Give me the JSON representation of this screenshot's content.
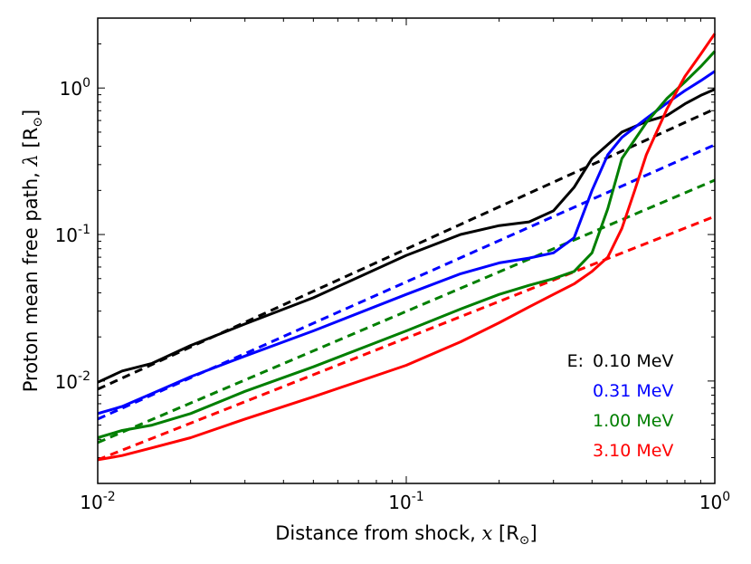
{
  "chart_data": {
    "type": "line",
    "xscale": "log",
    "yscale": "log",
    "xlim": [
      0.01,
      1.0
    ],
    "ylim": [
      0.002,
      3.0
    ],
    "xlabel": "Distance from shock,",
    "xlabel_math": "x",
    "xlabel_unit": "[R",
    "xlabel_unit_sub": "⊙",
    "xlabel_unit_close": "]",
    "ylabel": "Proton mean free path,",
    "ylabel_math": "λ",
    "ylabel_unit": "[R",
    "ylabel_unit_sub": "⊙",
    "ylabel_unit_close": "]",
    "x_ticks": [
      {
        "value": 0.01,
        "base": "10",
        "exp": "-2"
      },
      {
        "value": 0.1,
        "base": "10",
        "exp": "-1"
      },
      {
        "value": 1.0,
        "base": "10",
        "exp": "0"
      }
    ],
    "y_ticks": [
      {
        "value": 0.01,
        "base": "10",
        "exp": "-2"
      },
      {
        "value": 0.1,
        "base": "10",
        "exp": "-1"
      },
      {
        "value": 1.0,
        "base": "10",
        "exp": "0"
      }
    ],
    "legend_title": "E:",
    "legend_position": "lower-right",
    "series": [
      {
        "name": "0.10 MeV",
        "color": "#000000",
        "solid": {
          "x": [
            0.01,
            0.012,
            0.015,
            0.02,
            0.03,
            0.05,
            0.1,
            0.15,
            0.2,
            0.25,
            0.3,
            0.35,
            0.4,
            0.5,
            0.6,
            0.7,
            0.8,
            0.9,
            1.0
          ],
          "y": [
            0.0098,
            0.0117,
            0.0132,
            0.0175,
            0.0245,
            0.037,
            0.072,
            0.1,
            0.115,
            0.122,
            0.145,
            0.21,
            0.33,
            0.5,
            0.59,
            0.65,
            0.78,
            0.89,
            0.98
          ]
        },
        "fit": {
          "x": [
            0.01,
            1.0
          ],
          "y": [
            0.0088,
            0.72
          ]
        }
      },
      {
        "name": "0.31 MeV",
        "color": "#0000ff",
        "solid": {
          "x": [
            0.01,
            0.012,
            0.015,
            0.02,
            0.03,
            0.05,
            0.1,
            0.15,
            0.2,
            0.25,
            0.3,
            0.35,
            0.4,
            0.45,
            0.5,
            0.6,
            0.7,
            0.8,
            0.9,
            1.0
          ],
          "y": [
            0.006,
            0.0067,
            0.0082,
            0.0107,
            0.0148,
            0.022,
            0.039,
            0.054,
            0.064,
            0.069,
            0.075,
            0.095,
            0.2,
            0.35,
            0.46,
            0.62,
            0.79,
            0.96,
            1.12,
            1.3
          ]
        },
        "fit": {
          "x": [
            0.01,
            1.0
          ],
          "y": [
            0.0055,
            0.41
          ]
        }
      },
      {
        "name": "1.00 MeV",
        "color": "#007f00",
        "solid": {
          "x": [
            0.01,
            0.012,
            0.015,
            0.02,
            0.03,
            0.05,
            0.1,
            0.15,
            0.2,
            0.25,
            0.3,
            0.35,
            0.4,
            0.45,
            0.5,
            0.6,
            0.7,
            0.8,
            0.9,
            1.0
          ],
          "y": [
            0.0041,
            0.0046,
            0.005,
            0.006,
            0.0085,
            0.0125,
            0.022,
            0.031,
            0.039,
            0.045,
            0.05,
            0.056,
            0.075,
            0.15,
            0.33,
            0.58,
            0.85,
            1.1,
            1.4,
            1.78
          ]
        },
        "fit": {
          "x": [
            0.01,
            1.0
          ],
          "y": [
            0.0038,
            0.235
          ]
        }
      },
      {
        "name": "3.10 MeV",
        "color": "#ff0000",
        "solid": {
          "x": [
            0.01,
            0.012,
            0.015,
            0.02,
            0.03,
            0.05,
            0.1,
            0.15,
            0.2,
            0.25,
            0.3,
            0.35,
            0.4,
            0.45,
            0.5,
            0.55,
            0.6,
            0.7,
            0.8,
            0.9,
            1.0
          ],
          "y": [
            0.0029,
            0.0031,
            0.0035,
            0.0041,
            0.0055,
            0.0078,
            0.0128,
            0.0185,
            0.025,
            0.032,
            0.039,
            0.046,
            0.056,
            0.07,
            0.11,
            0.2,
            0.35,
            0.72,
            1.2,
            1.7,
            2.35
          ]
        },
        "fit": {
          "x": [
            0.01,
            1.0
          ],
          "y": [
            0.0029,
            0.133
          ]
        }
      }
    ]
  }
}
